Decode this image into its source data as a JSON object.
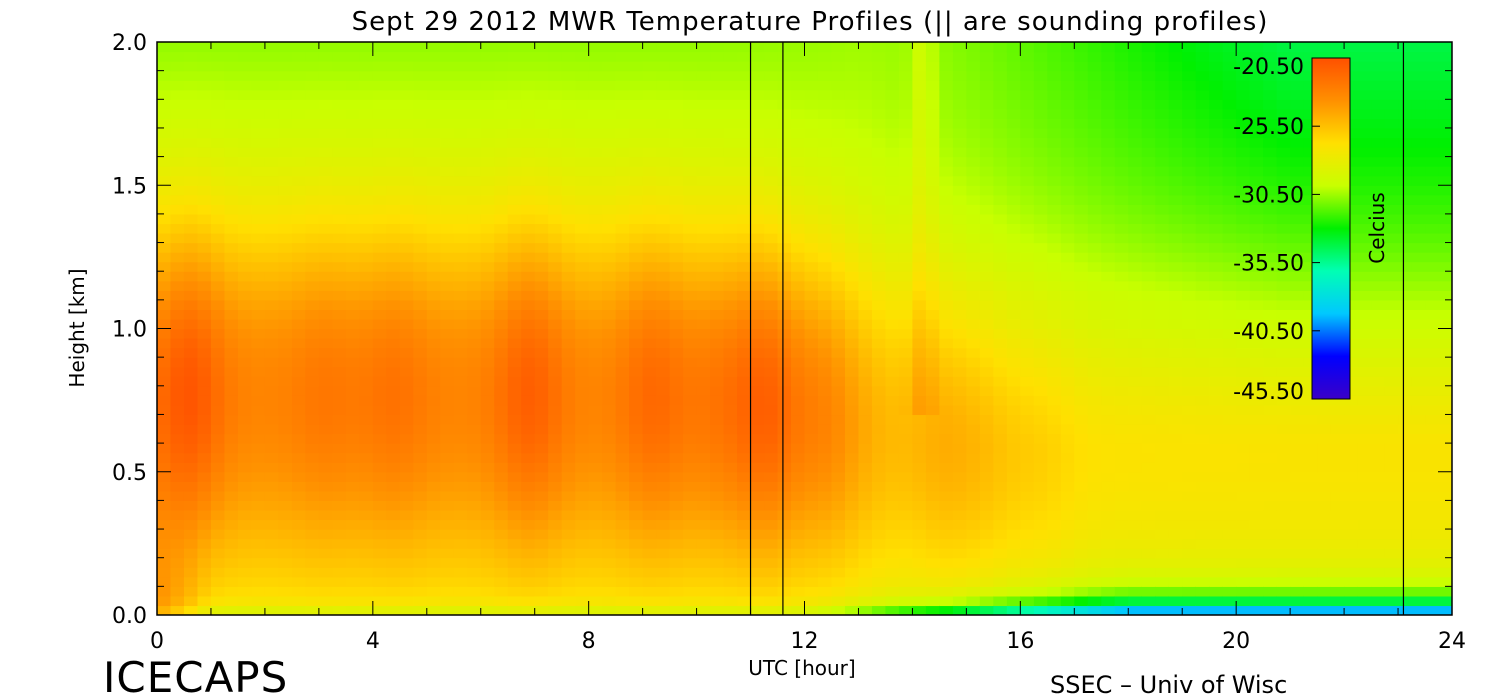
{
  "chart_data": {
    "type": "heatmap",
    "title": "Sept 29 2012 MWR Temperature Profiles (|| are sounding profiles)",
    "xlabel": "UTC [hour]",
    "ylabel": "Height [km]",
    "xlim": [
      0,
      24
    ],
    "ylim": [
      0,
      2.0
    ],
    "x_ticks": [
      "0",
      "4",
      "8",
      "12",
      "16",
      "20",
      "24"
    ],
    "y_ticks": [
      "0.0",
      "0.5",
      "1.0",
      "1.5",
      "2.0"
    ],
    "sounding_times": [
      11.0,
      11.6,
      23.1
    ],
    "colorbar": {
      "label": "Celcius",
      "ticks": [
        "-20.50",
        "-25.50",
        "-30.50",
        "-35.50",
        "-40.50",
        "-45.50"
      ],
      "range": [
        -45.5,
        -20.5
      ],
      "stops": [
        "#3a00c8",
        "#0000ff",
        "#00c8ff",
        "#00ffb4",
        "#00f000",
        "#c8ff00",
        "#ffe000",
        "#ff9000",
        "#ff5000"
      ]
    },
    "approx_surface_temp_c": [
      -20.6,
      -22.0,
      -23.0,
      -24.0,
      -26.5,
      -34.0,
      -43.0
    ],
    "approx_surface_hours": [
      0,
      2,
      6,
      10,
      12,
      16,
      20
    ]
  },
  "footer": {
    "logo": "ICECAPS",
    "credit": "SSEC – Univ of Wisc"
  }
}
